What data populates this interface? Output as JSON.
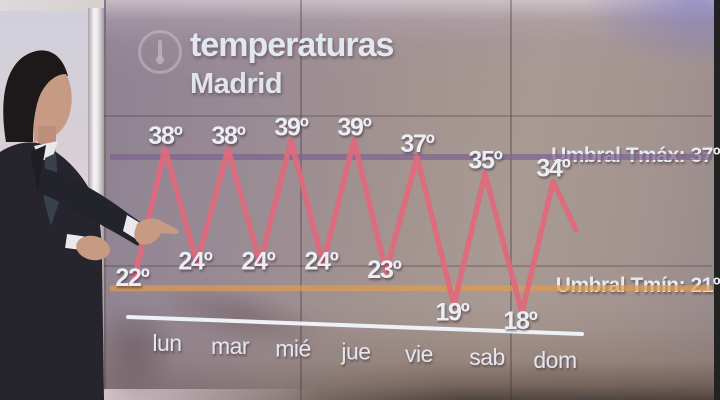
{
  "header": {
    "title": "temperaturas",
    "subtitle": "Madrid"
  },
  "chart_data": {
    "type": "line",
    "title": "temperaturas",
    "subtitle": "Madrid",
    "unit": "º",
    "categories": [
      "lun",
      "mar",
      "mié",
      "jue",
      "vie",
      "sab",
      "dom"
    ],
    "series": [
      {
        "name": "Tmáx",
        "values": [
          38,
          38,
          39,
          39,
          37,
          35,
          34
        ]
      },
      {
        "name": "Tmín",
        "values": [
          22,
          24,
          24,
          24,
          23,
          19,
          18
        ]
      }
    ],
    "thresholds": [
      {
        "name": "tmax",
        "label": "Umbral Tmáx: 37º",
        "value": 37,
        "color": "#7d6590"
      },
      {
        "name": "tmin",
        "label": "Umbral Tmín: 21º",
        "value": 21,
        "color": "#dd9c50"
      }
    ],
    "line_color": "#e0697c",
    "axis_color": "#eef2f7",
    "ylim": [
      17,
      40
    ],
    "legend": "none",
    "grid": "panel-seams-only"
  }
}
